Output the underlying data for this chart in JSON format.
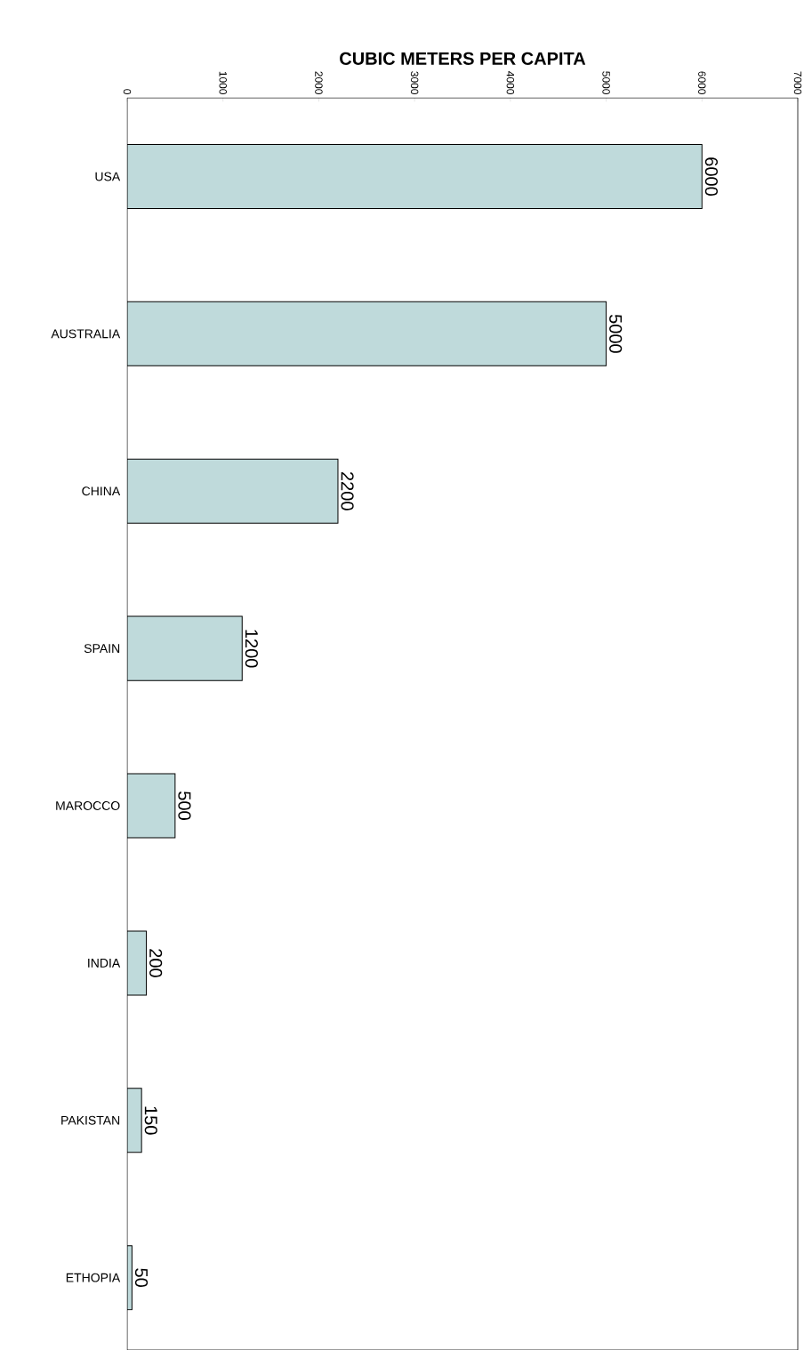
{
  "chart_data": {
    "type": "bar",
    "orientation": "horizontal",
    "xlabel": "CUBIC METERS PER CAPITA",
    "categories": [
      "USA",
      "AUSTRALIA",
      "CHINA",
      "SPAIN",
      "MAROCCO",
      "INDIA",
      "PAKISTAN",
      "ETHOPIA"
    ],
    "values": [
      6000,
      5000,
      2200,
      1200,
      500,
      200,
      150,
      50
    ],
    "color": "#bfdadb",
    "xlim": [
      0,
      7000
    ],
    "xticks": [
      0,
      1000,
      2000,
      3000,
      4000,
      5000,
      6000,
      7000
    ],
    "data_labels": true,
    "grid": false
  }
}
